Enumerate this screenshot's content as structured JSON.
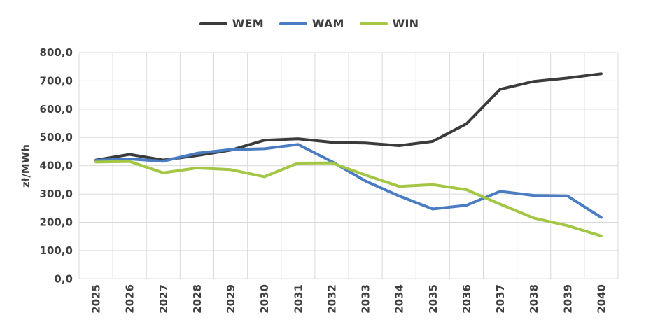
{
  "legend": {
    "items": [
      {
        "label": "WEM"
      },
      {
        "label": "WAM"
      },
      {
        "label": "WIN"
      }
    ]
  },
  "chart_data": {
    "type": "line",
    "title": "",
    "xlabel": "",
    "ylabel": "zł/MWh",
    "x": [
      "2025",
      "2026",
      "2027",
      "2028",
      "2029",
      "2030",
      "2031",
      "2032",
      "2033",
      "2034",
      "2035",
      "2036",
      "2037",
      "2038",
      "2039",
      "2040"
    ],
    "series": [
      {
        "name": "WEM",
        "color": "#3b3b3b",
        "values": [
          420,
          440,
          420,
          436,
          455,
          490,
          495,
          483,
          480,
          471,
          486,
          548,
          670,
          698,
          710,
          725
        ]
      },
      {
        "name": "WAM",
        "color": "#4a7cc2",
        "values": [
          419,
          424,
          416,
          444,
          457,
          460,
          475,
          415,
          346,
          293,
          247,
          260,
          309,
          295,
          293,
          217
        ]
      },
      {
        "name": "WIN",
        "color": "#a3c644",
        "values": [
          413,
          415,
          375,
          392,
          386,
          361,
          409,
          410,
          367,
          327,
          333,
          315,
          264,
          215,
          188,
          152
        ]
      }
    ],
    "ylim": [
      0,
      800
    ],
    "ytick_step": 100,
    "ytick_labels": [
      "0,0",
      "100,0",
      "200,0",
      "300,0",
      "400,0",
      "500,0",
      "600,0",
      "700,0",
      "800,0"
    ],
    "grid": true,
    "legend_position": "top",
    "colors": {
      "gridline": "#d9d9d9",
      "axis_line": "#bfbfbf",
      "tick_label": "#404040"
    }
  }
}
